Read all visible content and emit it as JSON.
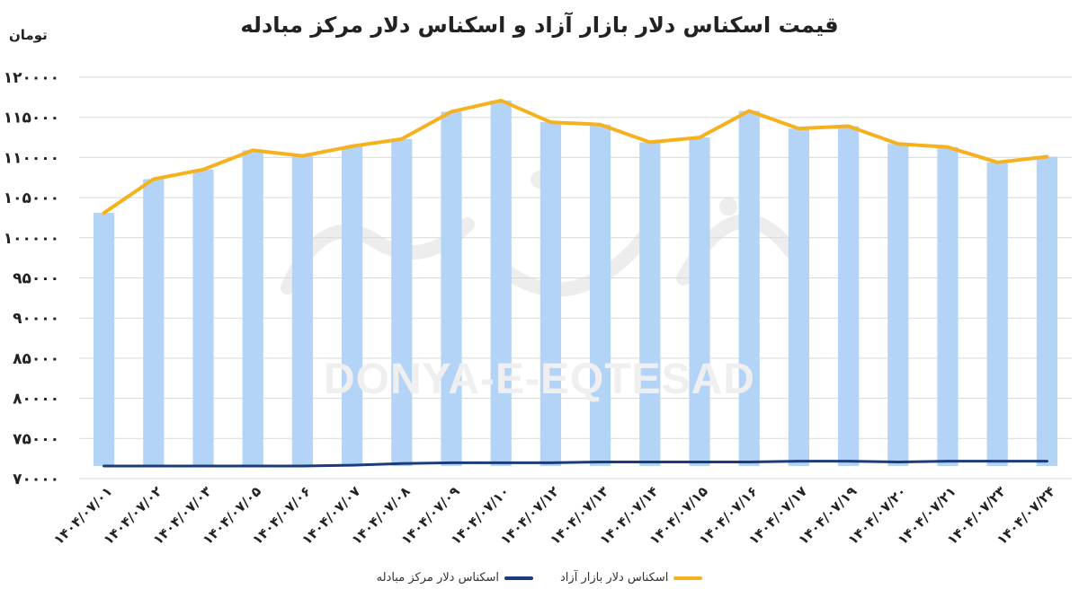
{
  "chart_data": {
    "type": "bar+line",
    "title": "قیمت اسکناس دلار بازار آزاد و اسکناس دلار مرکز مبادله",
    "ylabel": "تومان",
    "ylim": [
      70000,
      120000
    ],
    "ytick_values": [
      70000,
      75000,
      80000,
      85000,
      90000,
      95000,
      100000,
      105000,
      110000,
      115000,
      120000
    ],
    "ytick_labels": [
      "۷۰۰۰۰",
      "۷۵۰۰۰",
      "۸۰۰۰۰",
      "۸۵۰۰۰",
      "۹۰۰۰۰",
      "۹۵۰۰۰",
      "۱۰۰۰۰۰",
      "۱۰۵۰۰۰",
      "۱۱۰۰۰۰",
      "۱۱۵۰۰۰",
      "۱۲۰۰۰۰"
    ],
    "categories": [
      "۱۴۰۴/۰۷/۰۱",
      "۱۴۰۴/۰۷/۰۲",
      "۱۴۰۴/۰۷/۰۳",
      "۱۴۰۴/۰۷/۰۵",
      "۱۴۰۴/۰۷/۰۶",
      "۱۴۰۴/۰۷/۰۷",
      "۱۴۰۴/۰۷/۰۸",
      "۱۴۰۴/۰۷/۰۹",
      "۱۴۰۴/۰۷/۱۰",
      "۱۴۰۴/۰۷/۱۲",
      "۱۴۰۴/۰۷/۱۳",
      "۱۴۰۴/۰۷/۱۴",
      "۱۴۰۴/۰۷/۱۵",
      "۱۴۰۴/۰۷/۱۶",
      "۱۴۰۴/۰۷/۱۷",
      "۱۴۰۴/۰۷/۱۹",
      "۱۴۰۴/۰۷/۲۰",
      "۱۴۰۴/۰۷/۲۱",
      "۱۴۰۴/۰۷/۲۳",
      "۱۴۰۴/۰۷/۲۴"
    ],
    "series": [
      {
        "name": "اسکناس دلار بازار آزاد",
        "kind": "bar+line",
        "bar_color": "#b3d3f7",
        "line_color": "#f5b21e",
        "values": [
          103100,
          107300,
          108500,
          110900,
          110200,
          111400,
          112300,
          115700,
          117100,
          114400,
          114100,
          111900,
          112500,
          115800,
          113600,
          113900,
          111700,
          111300,
          109400,
          110100
        ]
      },
      {
        "name": "اسکناس دلار مرکز مبادله",
        "kind": "line",
        "line_color": "#1b3b7a",
        "values": [
          70000,
          70000,
          70000,
          70000,
          70000,
          70100,
          70300,
          70400,
          70400,
          70400,
          70500,
          70500,
          70500,
          70500,
          70600,
          70600,
          70500,
          70600,
          70600,
          70600
        ]
      }
    ],
    "grid": true,
    "legend_position": "bottom-center"
  },
  "watermark": {
    "latin": "DONYA-E-EQTESAD"
  }
}
